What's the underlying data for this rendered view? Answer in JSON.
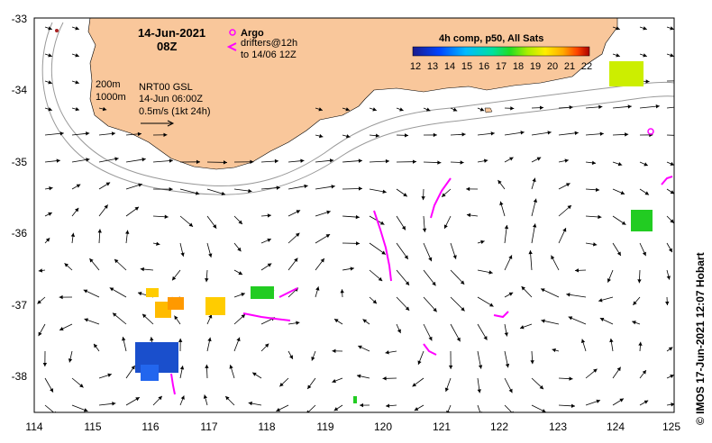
{
  "map": {
    "date_line1": "14-Jun-2021",
    "date_line2": "08Z",
    "argo_label": "Argo",
    "drifters_line1": "drifters@12h",
    "drifters_line2": "to 14/06 12Z",
    "colorbar_title": "4h comp, p50, All Sats",
    "colorbar_ticks": [
      "12",
      "13",
      "14",
      "15",
      "16",
      "17",
      "18",
      "19",
      "20",
      "21",
      "22"
    ],
    "contour_200": "200m",
    "contour_1000": "1000m",
    "product_line1": "NRT00 GSL",
    "product_line2": "14-Jun 06:00Z",
    "scale_label": "0.5m/s (1kt 24h)",
    "credit": "© IMOS 17-Jun-2021 12:07 Hobart",
    "lat_ticks": [
      "-33",
      "-34",
      "-35",
      "-36",
      "-37",
      "-38"
    ],
    "lon_ticks": [
      "114",
      "115",
      "116",
      "117",
      "118",
      "119",
      "120",
      "121",
      "122",
      "123",
      "124",
      "125"
    ],
    "colors": {
      "land": "#f9c79b",
      "argo": "#ff00ff",
      "drifter": "#ff00ff",
      "vector": "#000000",
      "isobath": "#999999"
    }
  }
}
